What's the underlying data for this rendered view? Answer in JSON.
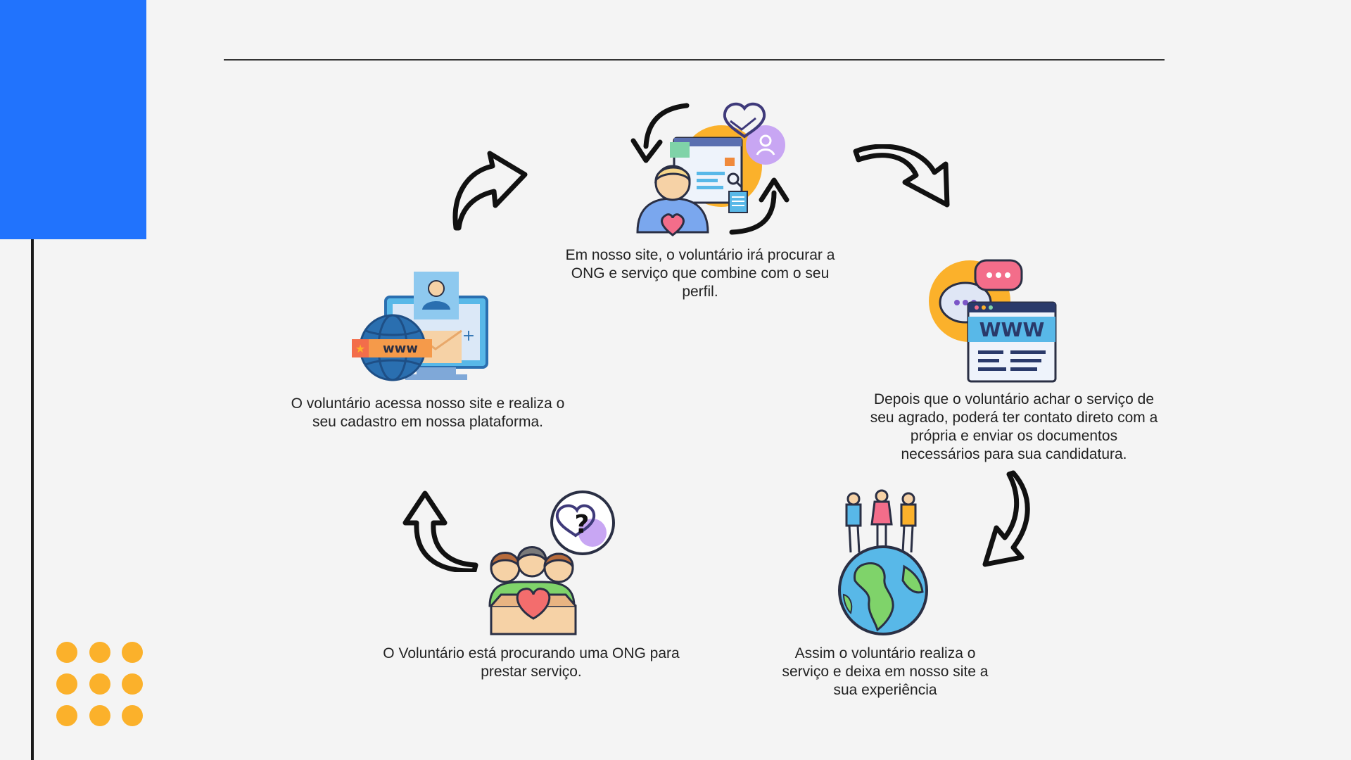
{
  "steps": [
    {
      "id": "search",
      "caption": "Em nosso site, o voluntário irá procurar a ONG e serviço que combine com o seu perfil."
    },
    {
      "id": "contact",
      "caption": "Depois que o voluntário achar o serviço de seu agrado, poderá ter contato direto com a própria e enviar os documentos necessários para sua candidatura."
    },
    {
      "id": "experience",
      "caption": "Assim o voluntário realiza o serviço e deixa em nosso site a sua experiência"
    },
    {
      "id": "looking",
      "caption": "O Voluntário está procurando uma ONG para prestar serviço."
    },
    {
      "id": "signup",
      "caption": "O voluntário acessa nosso site e realiza o seu cadastro em nossa plataforma."
    }
  ],
  "icons": {
    "search": "volunteer-browsing-icon",
    "contact": "chat-website-icon",
    "experience": "people-on-globe-icon",
    "looking": "group-with-heart-box-icon",
    "signup": "www-registration-icon"
  },
  "illustration_labels": {
    "www": "WWW",
    "www_small": "www",
    "question": "?"
  },
  "colors": {
    "accent_blue": "#2173fd",
    "dots_yellow": "#fbb12b",
    "background": "#f4f4f4"
  }
}
